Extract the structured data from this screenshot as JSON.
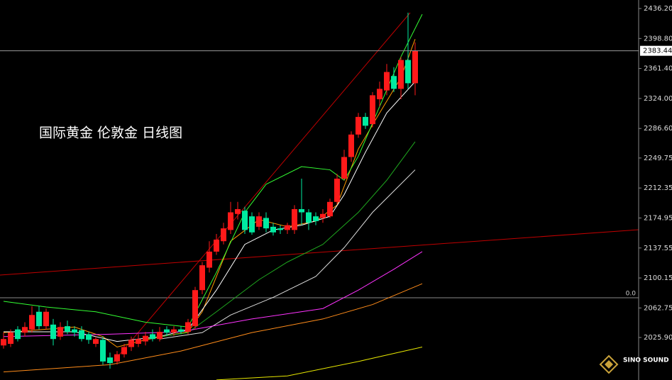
{
  "chart_data": {
    "type": "candlestick",
    "title": "国际黄金 伦敦金 日线图",
    "open": [
      2016,
      2018,
      2036,
      2032,
      2036,
      2058,
      2040,
      2042,
      2027,
      2040,
      2036,
      2035,
      2030,
      2018,
      2023,
      2001,
      1996,
      2005,
      2014,
      2018,
      2021,
      2030,
      2024,
      2036,
      2032,
      2036,
      2033,
      2040,
      2085,
      2113,
      2133,
      2146,
      2160,
      2180,
      2184,
      2177,
      2164,
      2175,
      2164,
      2162,
      2160,
      2160,
      2186,
      2182,
      2177,
      2175,
      2177,
      2195,
      2224,
      2251,
      2279,
      2301,
      2292,
      2323,
      2334,
      2352,
      2336,
      2372,
      2343
    ],
    "close": [
      2024,
      2032,
      2024,
      2039,
      2054,
      2040,
      2058,
      2024,
      2039,
      2033,
      2032,
      2024,
      2023,
      2024,
      1996,
      1994,
      2005,
      2014,
      2023,
      2024,
      2028,
      2024,
      2033,
      2032,
      2036,
      2033,
      2045,
      2085,
      2116,
      2133,
      2148,
      2162,
      2182,
      2186,
      2160,
      2157,
      2177,
      2162,
      2157,
      2160,
      2166,
      2186,
      2182,
      2169,
      2171,
      2180,
      2195,
      2224,
      2251,
      2279,
      2301,
      2290,
      2328,
      2336,
      2357,
      2336,
      2372,
      2343,
      2383.44
    ],
    "high": [
      2032,
      2036,
      2040,
      2045,
      2065,
      2065,
      2062,
      2049,
      2045,
      2047,
      2040,
      2040,
      2033,
      2027,
      2027,
      2007,
      2009,
      2018,
      2027,
      2030,
      2033,
      2036,
      2039,
      2040,
      2040,
      2040,
      2049,
      2089,
      2120,
      2146,
      2155,
      2169,
      2195,
      2195,
      2189,
      2182,
      2182,
      2182,
      2169,
      2166,
      2169,
      2191,
      2224,
      2186,
      2182,
      2186,
      2199,
      2230,
      2260,
      2283,
      2306,
      2306,
      2332,
      2345,
      2367,
      2363,
      2376,
      2431,
      2394
    ],
    "low": [
      2012,
      2014,
      2021,
      2027,
      2032,
      2036,
      2036,
      2016,
      2023,
      2030,
      2027,
      2021,
      2018,
      2014,
      1992,
      1987,
      1992,
      2001,
      2009,
      2014,
      2016,
      2021,
      2021,
      2028,
      2028,
      2030,
      2030,
      2036,
      2080,
      2107,
      2129,
      2142,
      2155,
      2173,
      2155,
      2154,
      2160,
      2157,
      2153,
      2155,
      2155,
      2155,
      2166,
      2160,
      2166,
      2169,
      2175,
      2192,
      2222,
      2245,
      2275,
      2286,
      2288,
      2314,
      2328,
      2332,
      2323,
      2336,
      2328
    ],
    "up_color": "#ff1a1a",
    "down_color": "#00eaa0",
    "ylim": [
      1972.9,
      2446.8
    ],
    "yticks": [
      {
        "value": 2436.2,
        "label": "2436.20"
      },
      {
        "value": 2398.8,
        "label": "2398.80"
      },
      {
        "value": 2361.4,
        "label": "2361.40"
      },
      {
        "value": 2324,
        "label": "2324.00"
      },
      {
        "value": 2286.6,
        "label": "2286.60"
      },
      2249.75,
      2212.35,
      2174.95,
      2137.55,
      2100.15,
      2062.75,
      {
        "value": 2025.9,
        "label": "2025.90"
      }
    ],
    "last_price": 2383.44,
    "indicator_lines": [
      {
        "color": "#ff9900",
        "x": [
          0,
          10,
          14,
          16,
          20,
          26,
          28,
          32,
          36,
          40,
          44,
          47,
          50,
          53,
          56,
          58
        ],
        "values": [
          2032,
          2039,
          2027,
          2014,
          2023,
          2033,
          2058,
          2146,
          2173,
          2164,
          2171,
          2191,
          2261,
          2306,
          2350,
          2398
        ]
      },
      {
        "color": "#ffffff",
        "x": [
          0,
          10,
          16,
          22,
          26,
          30,
          34,
          38,
          42,
          46,
          48,
          51,
          54,
          58
        ],
        "values": [
          2033,
          2033,
          2021,
          2027,
          2036,
          2085,
          2142,
          2160,
          2166,
          2177,
          2204,
          2257,
          2306,
          2345
        ]
      },
      {
        "color": "#1fa81f",
        "x": [
          20,
          26,
          30,
          36,
          40,
          45,
          50,
          54,
          58
        ],
        "values": [
          2024,
          2032,
          2058,
          2098,
          2120,
          2142,
          2182,
          2222,
          2270
        ]
      },
      {
        "color": "#dddddd",
        "x": [
          22,
          28,
          32,
          38,
          44,
          48,
          52,
          58
        ],
        "values": [
          2024,
          2032,
          2054,
          2076,
          2102,
          2138,
          2182,
          2235
        ]
      },
      {
        "color": "#ff33ff",
        "x": [
          0,
          15,
          25,
          35,
          45,
          50,
          55,
          59
        ],
        "values": [
          2027,
          2030,
          2033,
          2049,
          2062,
          2085,
          2111,
          2133
        ]
      },
      {
        "color": "#ff8c1a",
        "x": [
          0,
          15,
          25,
          35,
          45,
          52,
          59
        ],
        "values": [
          1983,
          1992,
          2009,
          2032,
          2049,
          2067,
          2093
        ]
      },
      {
        "color": "#e6e600",
        "x": [
          30,
          40,
          50,
          59
        ],
        "values": [
          1973,
          1978,
          1996,
          2014
        ]
      },
      {
        "color": "#33ff33",
        "x": [
          0,
          6,
          13,
          20,
          26,
          30,
          34,
          37,
          42,
          46,
          48,
          50,
          53,
          56,
          59
        ],
        "values": [
          2071,
          2064,
          2058,
          2045,
          2039,
          2107,
          2182,
          2217,
          2239,
          2235,
          2222,
          2252,
          2314,
          2376,
          2429
        ]
      }
    ],
    "zero_label": "0.0",
    "watermark": "SINO SOUND"
  }
}
